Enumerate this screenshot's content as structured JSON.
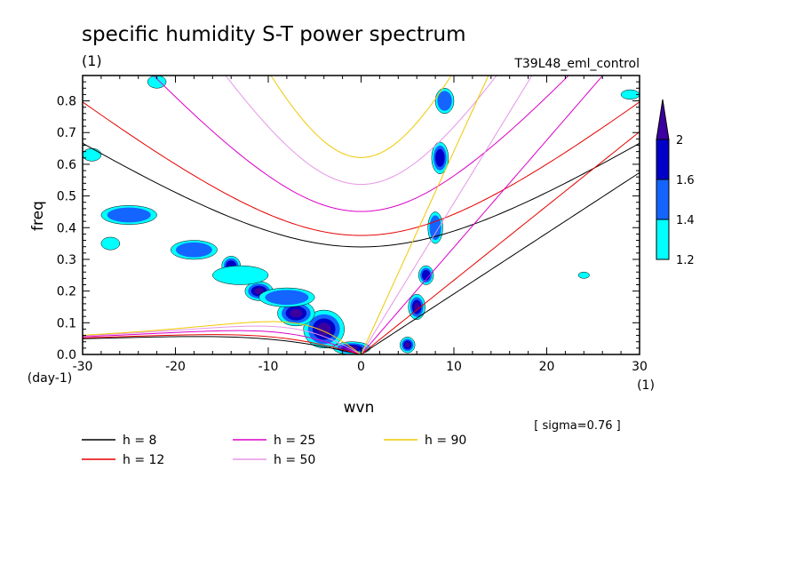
{
  "chart_data": {
    "type": "contour",
    "title": "specific humidity S-T power spectrum",
    "subtitle_left": "(1)",
    "subtitle_right": "T39L48_eml_control",
    "xlabel": "wvn",
    "ylabel": "freq",
    "x_unit_label": "(1)",
    "y_unit_label": "(day-1)",
    "xlim": [
      -30,
      30
    ],
    "ylim": [
      0,
      0.88
    ],
    "x_ticks": [
      "-30",
      "-20",
      "-10",
      "0",
      "10",
      "20",
      "30"
    ],
    "y_ticks": [
      "0.0",
      "0.1",
      "0.2",
      "0.3",
      "0.4",
      "0.5",
      "0.6",
      "0.7",
      "0.8"
    ],
    "note": "[ sigma=0.76 ]",
    "colorbar": {
      "levels": [
        "1.2",
        "1.4",
        "1.6",
        "2"
      ],
      "colors": [
        "#00ffff",
        "#1464ff",
        "#0000c8",
        "#3c00a0"
      ]
    },
    "curves_legend": [
      {
        "label": "h =  8",
        "h": 8,
        "color": "#000000"
      },
      {
        "label": "h = 12",
        "h": 12,
        "color": "#e60000"
      },
      {
        "label": "h = 25",
        "h": 25,
        "color": "#dc00c8"
      },
      {
        "label": "h = 50",
        "h": 50,
        "color": "#e696e6"
      },
      {
        "label": "h = 90",
        "h": 90,
        "color": "#f0c800"
      }
    ],
    "contour_regions": [
      {
        "x": -4,
        "y": 0.08,
        "rx": 2.2,
        "ry": 0.06,
        "level": 3
      },
      {
        "x": -7,
        "y": 0.13,
        "rx": 2,
        "ry": 0.04,
        "level": 3
      },
      {
        "x": -11,
        "y": 0.2,
        "rx": 1.5,
        "ry": 0.03,
        "level": 3
      },
      {
        "x": -14,
        "y": 0.28,
        "rx": 1,
        "ry": 0.03,
        "level": 2
      },
      {
        "x": -1,
        "y": 0.02,
        "rx": 2,
        "ry": 0.02,
        "level": 3
      },
      {
        "x": 5,
        "y": 0.03,
        "rx": 0.8,
        "ry": 0.025,
        "level": 3
      },
      {
        "x": 6,
        "y": 0.15,
        "rx": 0.9,
        "ry": 0.04,
        "level": 3
      },
      {
        "x": 7,
        "y": 0.25,
        "rx": 0.8,
        "ry": 0.03,
        "level": 2
      },
      {
        "x": 8,
        "y": 0.4,
        "rx": 0.8,
        "ry": 0.05,
        "level": 1
      },
      {
        "x": 8.5,
        "y": 0.62,
        "rx": 0.9,
        "ry": 0.05,
        "level": 2
      },
      {
        "x": 9,
        "y": 0.8,
        "rx": 1,
        "ry": 0.04,
        "level": 1
      },
      {
        "x": -25,
        "y": 0.44,
        "rx": 3,
        "ry": 0.03,
        "level": 1
      },
      {
        "x": -27,
        "y": 0.35,
        "rx": 1,
        "ry": 0.02,
        "level": 0
      },
      {
        "x": -18,
        "y": 0.33,
        "rx": 2.5,
        "ry": 0.03,
        "level": 1
      },
      {
        "x": -13,
        "y": 0.25,
        "rx": 3,
        "ry": 0.03,
        "level": 0
      },
      {
        "x": -8,
        "y": 0.18,
        "rx": 3,
        "ry": 0.03,
        "level": 1
      },
      {
        "x": -29,
        "y": 0.63,
        "rx": 1,
        "ry": 0.02,
        "level": 0
      },
      {
        "x": -22,
        "y": 0.86,
        "rx": 1,
        "ry": 0.02,
        "level": 0
      },
      {
        "x": 29,
        "y": 0.82,
        "rx": 1,
        "ry": 0.015,
        "level": 0
      },
      {
        "x": 24,
        "y": 0.25,
        "rx": 0.6,
        "ry": 0.01,
        "level": 0
      }
    ]
  }
}
